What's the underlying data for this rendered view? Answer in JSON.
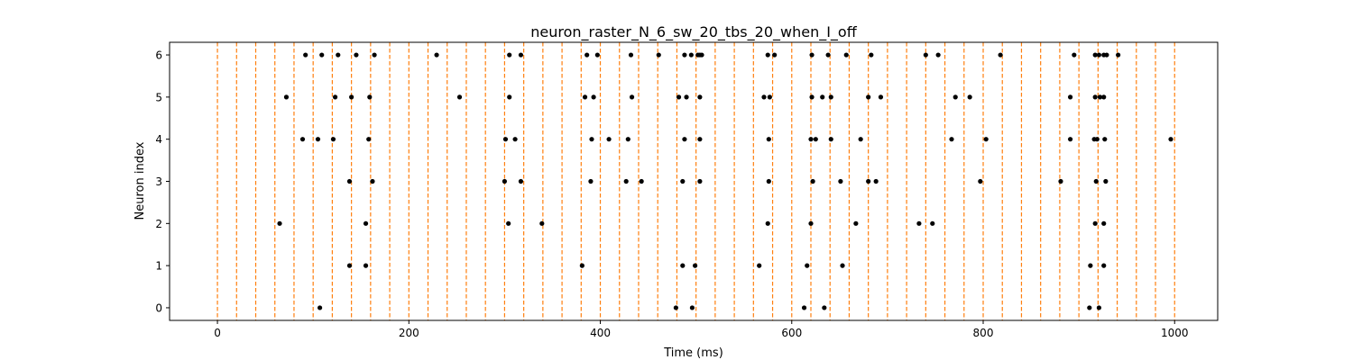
{
  "chart_data": {
    "type": "scatter",
    "title": "neuron_raster_N_6_sw_20_tbs_20_when_I_off",
    "xlabel": "Time (ms)",
    "ylabel": "Neuron index",
    "xlim": [
      -50,
      1045
    ],
    "ylim": [
      -0.3,
      6.3
    ],
    "x_ticks": [
      0,
      200,
      400,
      600,
      800,
      1000
    ],
    "y_ticks": [
      0,
      1,
      2,
      3,
      4,
      5,
      6
    ],
    "marker_color": "#000000",
    "grid": false,
    "vlines": {
      "color": "#ff7f0e",
      "style": "dashed",
      "x": [
        0,
        20,
        40,
        60,
        80,
        100,
        120,
        140,
        160,
        180,
        200,
        220,
        240,
        260,
        280,
        300,
        320,
        340,
        360,
        380,
        400,
        420,
        440,
        460,
        480,
        500,
        520,
        540,
        560,
        580,
        600,
        620,
        640,
        660,
        680,
        700,
        720,
        740,
        760,
        780,
        800,
        820,
        840,
        860,
        880,
        900,
        920,
        940,
        960,
        980,
        1000
      ]
    },
    "spikes": [
      {
        "neuron": 6,
        "times": [
          92,
          109,
          126,
          145,
          164,
          229,
          305,
          317,
          386,
          397,
          432,
          461,
          488,
          495,
          502,
          504,
          506,
          575,
          582,
          621,
          638,
          657,
          683,
          740,
          753,
          818,
          895,
          917,
          921,
          926,
          929,
          941
        ]
      },
      {
        "neuron": 5,
        "times": [
          72,
          123,
          140,
          159,
          253,
          305,
          384,
          393,
          433,
          482,
          490,
          504,
          571,
          577,
          621,
          632,
          641,
          680,
          693,
          771,
          786,
          891,
          917,
          922,
          926
        ]
      },
      {
        "neuron": 4,
        "times": [
          89,
          105,
          121,
          158,
          301,
          311,
          391,
          409,
          429,
          488,
          504,
          576,
          620,
          625,
          641,
          672,
          767,
          803,
          891,
          916,
          919,
          927,
          996
        ]
      },
      {
        "neuron": 3,
        "times": [
          138,
          162,
          300,
          317,
          390,
          427,
          443,
          486,
          504,
          576,
          622,
          651,
          680,
          688,
          797,
          881,
          918,
          928
        ]
      },
      {
        "neuron": 2,
        "times": [
          65,
          155,
          304,
          339,
          575,
          620,
          667,
          733,
          747,
          917,
          926
        ]
      },
      {
        "neuron": 1,
        "times": [
          138,
          155,
          381,
          486,
          499,
          566,
          616,
          653,
          912,
          926
        ]
      },
      {
        "neuron": 0,
        "times": [
          107,
          479,
          496,
          613,
          634,
          911,
          921
        ]
      }
    ]
  }
}
